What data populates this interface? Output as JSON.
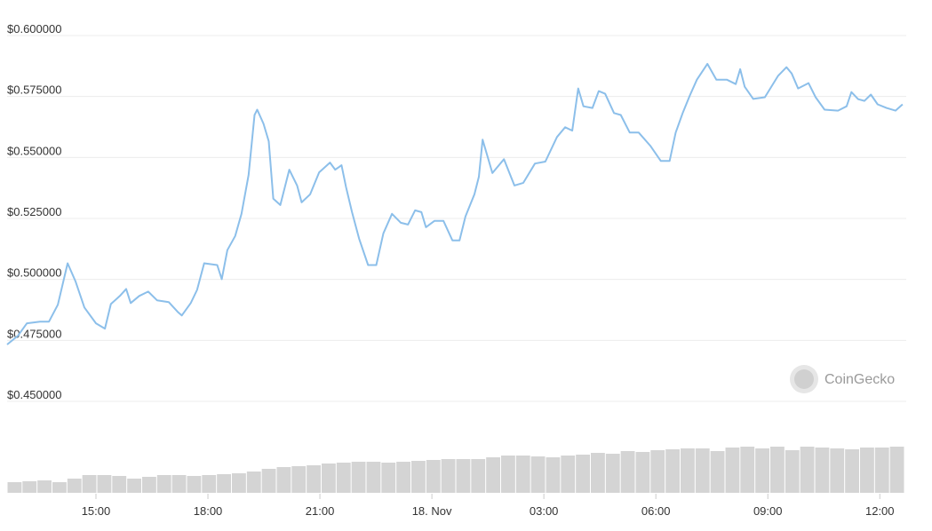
{
  "chart_data": {
    "type": "line",
    "watermark": "CoinGecko",
    "x": [
      12.62,
      12.91,
      13.15,
      13.5,
      13.74,
      13.98,
      14.24,
      14.45,
      14.69,
      15.0,
      15.24,
      15.4,
      15.64,
      15.81,
      15.93,
      16.16,
      16.4,
      16.64,
      16.95,
      17.19,
      17.3,
      17.54,
      17.71,
      17.9,
      18.25,
      18.37,
      18.52,
      18.73,
      18.9,
      19.09,
      19.25,
      19.32,
      19.49,
      19.63,
      19.75,
      19.94,
      20.18,
      20.39,
      20.51,
      20.74,
      20.98,
      21.27,
      21.41,
      21.58,
      21.7,
      21.86,
      22.05,
      22.29,
      22.51,
      22.7,
      22.93,
      23.17,
      23.36,
      23.55,
      23.72,
      23.84,
      24.07,
      24.31,
      24.55,
      24.74,
      24.9,
      25.14,
      25.26,
      25.36,
      25.62,
      25.93,
      26.21,
      26.45,
      26.76,
      27.04,
      27.35,
      27.57,
      27.76,
      27.92,
      28.06,
      28.3,
      28.47,
      28.64,
      28.88,
      29.06,
      29.3,
      29.54,
      29.85,
      30.13,
      30.37,
      30.53,
      30.72,
      30.91,
      31.1,
      31.38,
      31.62,
      31.9,
      32.14,
      32.26,
      32.38,
      32.61,
      32.92,
      33.27,
      33.5,
      33.64,
      33.81,
      34.09,
      34.28,
      34.52,
      34.88,
      35.11,
      35.24,
      35.42,
      35.59,
      35.76,
      35.94,
      36.18,
      36.42,
      36.61
    ],
    "series": [
      {
        "color": "#8cbfea",
        "values": [
          0.4733,
          0.4769,
          0.482,
          0.4827,
          0.4827,
          0.4896,
          0.5066,
          0.4993,
          0.4885,
          0.482,
          0.4798,
          0.4899,
          0.4932,
          0.4961,
          0.4903,
          0.4932,
          0.495,
          0.4914,
          0.4907,
          0.4867,
          0.4852,
          0.4903,
          0.4957,
          0.5066,
          0.5059,
          0.5001,
          0.512,
          0.5178,
          0.5269,
          0.5428,
          0.5674,
          0.5696,
          0.5638,
          0.5566,
          0.5331,
          0.5305,
          0.545,
          0.5385,
          0.5316,
          0.5349,
          0.5439,
          0.5479,
          0.545,
          0.5468,
          0.5378,
          0.5276,
          0.5167,
          0.5059,
          0.5059,
          0.5189,
          0.5269,
          0.5232,
          0.5225,
          0.5283,
          0.5276,
          0.5214,
          0.524,
          0.524,
          0.516,
          0.516,
          0.5258,
          0.5349,
          0.5421,
          0.5573,
          0.5436,
          0.5493,
          0.5385,
          0.5396,
          0.5475,
          0.5483,
          0.5584,
          0.5624,
          0.561,
          0.5783,
          0.571,
          0.5703,
          0.5772,
          0.5761,
          0.5682,
          0.5674,
          0.5602,
          0.5602,
          0.5548,
          0.5486,
          0.5486,
          0.5602,
          0.5682,
          0.5754,
          0.5819,
          0.5884,
          0.5819,
          0.5819,
          0.5801,
          0.5862,
          0.579,
          0.574,
          0.5747,
          0.5834,
          0.587,
          0.5844,
          0.5783,
          0.5805,
          0.5747,
          0.5696,
          0.5692,
          0.571,
          0.5768,
          0.5739,
          0.5732,
          0.5758,
          0.5718,
          0.5703,
          0.5692,
          0.5718
        ]
      }
    ],
    "xlim": [
      12.62,
      36.66
    ],
    "ylim": [
      0.45,
      0.6
    ],
    "xticks": [
      {
        "value": 15,
        "label": "15:00"
      },
      {
        "value": 18,
        "label": "18:00"
      },
      {
        "value": 21,
        "label": "21:00"
      },
      {
        "value": 24,
        "label": "18. Nov"
      },
      {
        "value": 27,
        "label": "03:00"
      },
      {
        "value": 30,
        "label": "06:00"
      },
      {
        "value": 33,
        "label": "09:00"
      },
      {
        "value": 36,
        "label": "12:00"
      }
    ],
    "yticks": [
      {
        "value": 0.45,
        "label": "$0.450000"
      },
      {
        "value": 0.475,
        "label": "$0.475000"
      },
      {
        "value": 0.5,
        "label": "$0.500000"
      },
      {
        "value": 0.525,
        "label": "$0.525000"
      },
      {
        "value": 0.55,
        "label": "$0.550000"
      },
      {
        "value": 0.575,
        "label": "$0.575000"
      },
      {
        "value": 0.6,
        "label": "$0.600000"
      }
    ],
    "grid": true,
    "volume": {
      "color": "#d4d4d4",
      "ylim": [
        0,
        60
      ],
      "values": [
        12,
        13,
        14,
        12,
        16,
        20,
        20,
        19,
        16,
        18,
        20,
        20,
        19,
        20,
        21,
        22,
        24,
        27,
        29,
        30,
        31,
        33,
        34,
        35,
        35,
        34,
        35,
        36,
        37,
        38,
        38,
        38,
        40,
        42,
        42,
        41,
        40,
        42,
        43,
        45,
        44,
        47,
        46,
        48,
        49,
        50,
        50,
        47,
        51,
        52,
        50,
        52,
        48,
        52,
        51,
        50,
        49,
        51,
        51,
        52
      ]
    }
  }
}
